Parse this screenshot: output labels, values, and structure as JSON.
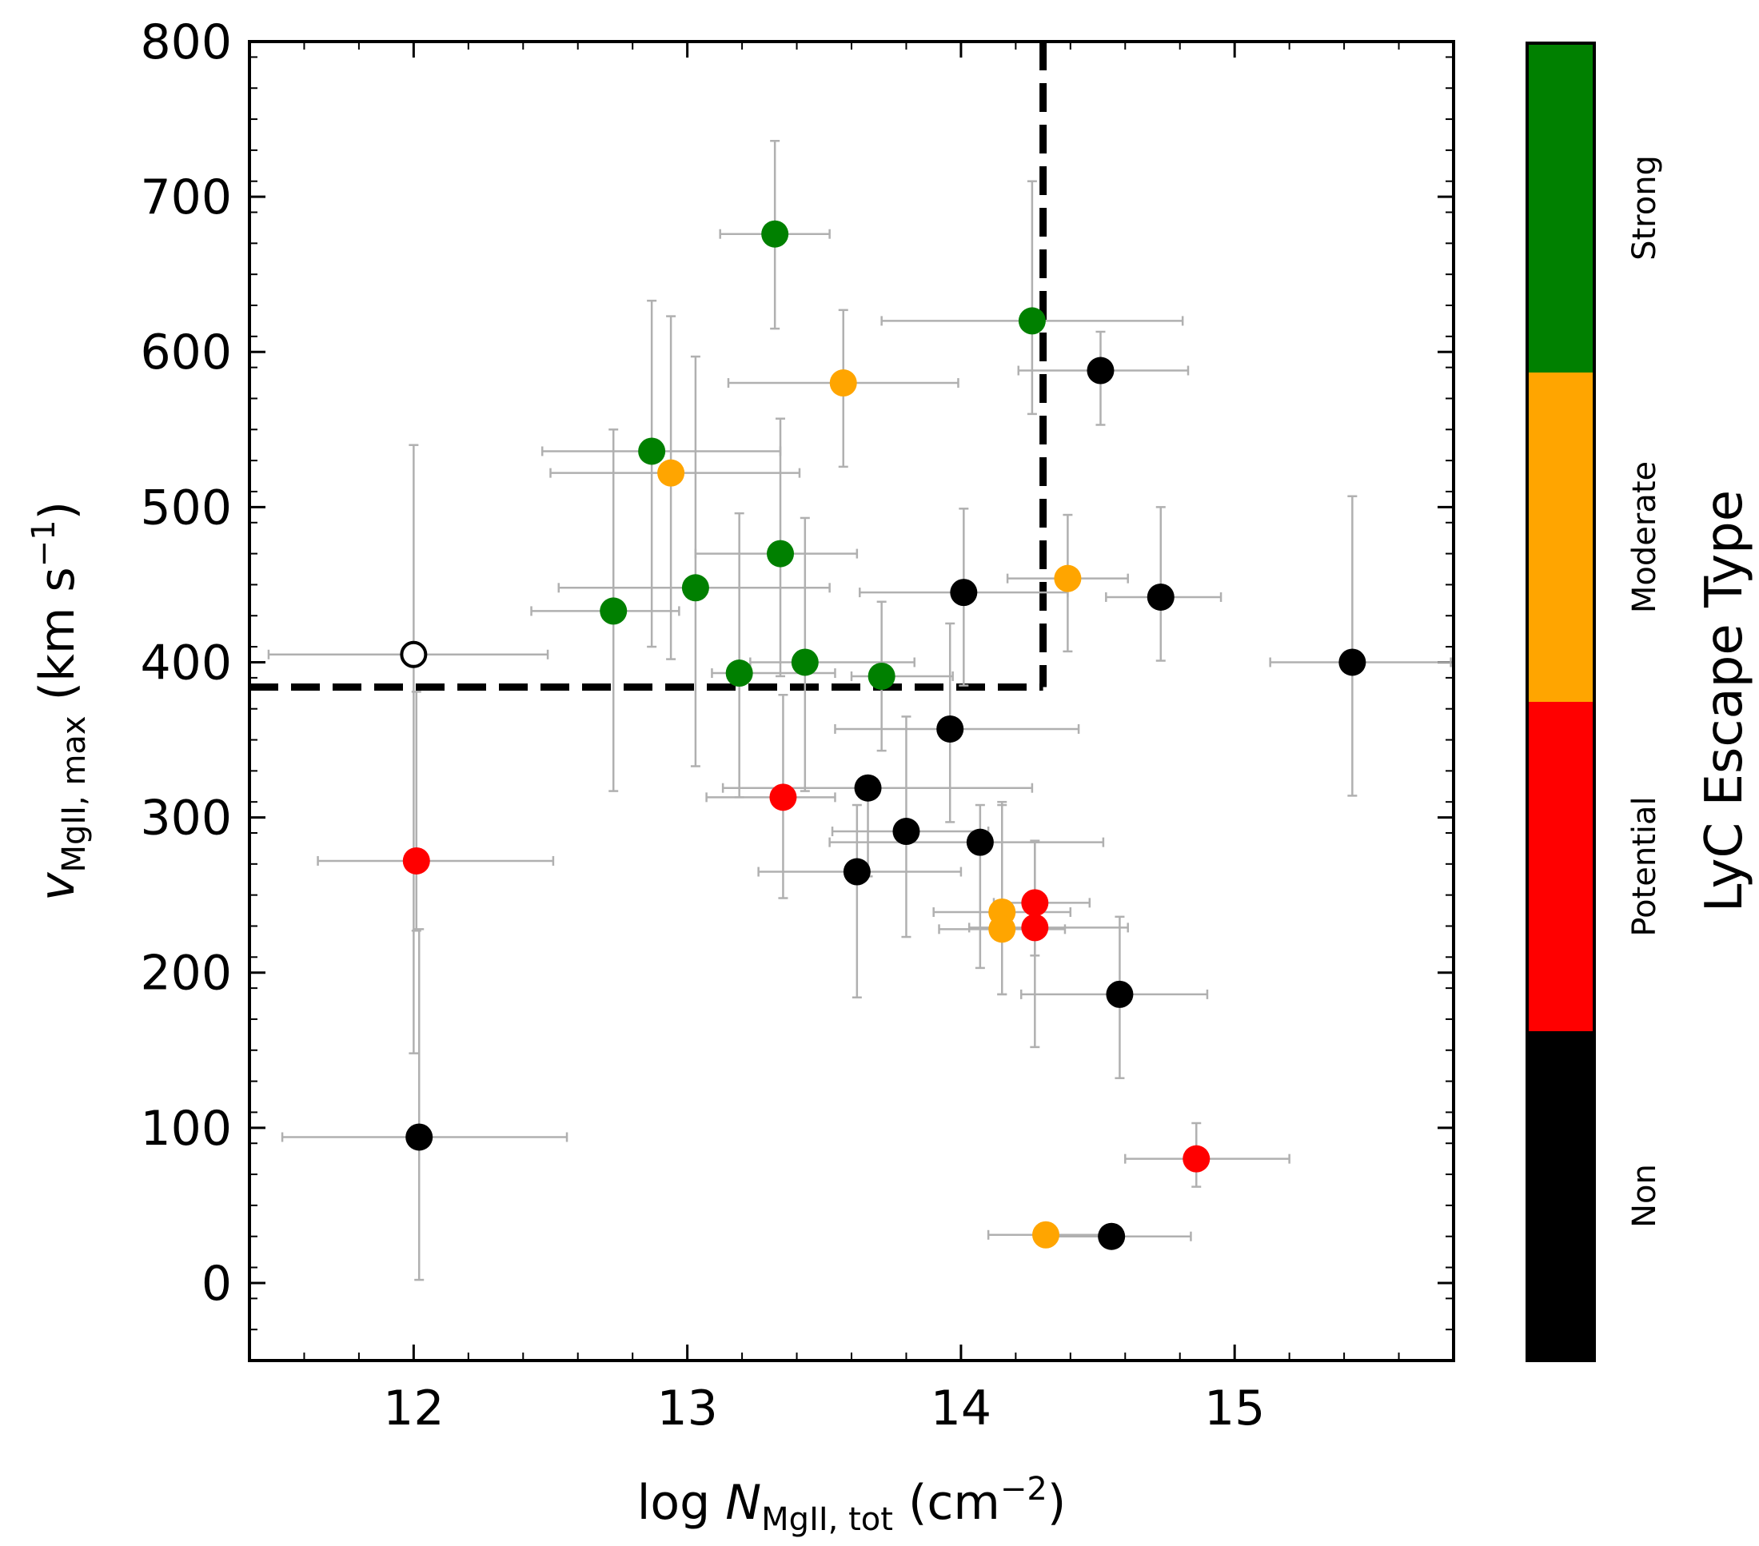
{
  "chart_data": {
    "type": "scatter",
    "xlabel": {
      "prefix": "log ",
      "var": "N",
      "sub": "MgII, tot",
      "unit_open": " (cm",
      "unit_exp": "−2",
      "unit_close": ")"
    },
    "ylabel": {
      "var": "v",
      "sub": "MgII, max",
      "unit_open": " (km s",
      "unit_exp": "−1",
      "unit_close": ")"
    },
    "xlim": [
      11.4,
      15.8
    ],
    "ylim": [
      -50,
      800
    ],
    "xticks": [
      {
        "value": 12,
        "label": "12"
      },
      {
        "value": 13,
        "label": "13"
      },
      {
        "value": 14,
        "label": "14"
      },
      {
        "value": 15,
        "label": "15"
      }
    ],
    "yticks": [
      {
        "value": 0,
        "label": "0"
      },
      {
        "value": 100,
        "label": "100"
      },
      {
        "value": 200,
        "label": "200"
      },
      {
        "value": 300,
        "label": "300"
      },
      {
        "value": 400,
        "label": "400"
      },
      {
        "value": 500,
        "label": "500"
      },
      {
        "value": 600,
        "label": "600"
      },
      {
        "value": 700,
        "label": "700"
      },
      {
        "value": 800,
        "label": "800"
      }
    ],
    "threshold_lines": {
      "vmax": 384,
      "logN": 14.3
    },
    "colorbar": {
      "title": "LyC Escape Type",
      "categories": [
        {
          "name": "Non",
          "label": "Non",
          "color": "#000000"
        },
        {
          "name": "Potential",
          "label": "Potential",
          "color": "#ff0000"
        },
        {
          "name": "Moderate",
          "label": "Moderate",
          "color": "#ffa500"
        },
        {
          "name": "Strong",
          "label": "Strong",
          "color": "#008000"
        }
      ]
    },
    "points": [
      {
        "x": 13.32,
        "y": 676,
        "xerr": [
          0.2,
          0.2
        ],
        "yerr": [
          61,
          60
        ],
        "cls": "Strong"
      },
      {
        "x": 14.26,
        "y": 620,
        "xerr": [
          0.55,
          0.55
        ],
        "yerr": [
          60,
          90
        ],
        "cls": "Strong"
      },
      {
        "x": 12.87,
        "y": 536,
        "xerr": [
          0.4,
          0.47
        ],
        "yerr": [
          126,
          97
        ],
        "cls": "Strong"
      },
      {
        "x": 13.34,
        "y": 470,
        "xerr": [
          0.31,
          0.28
        ],
        "yerr": [
          79,
          87
        ],
        "cls": "Strong"
      },
      {
        "x": 13.03,
        "y": 448,
        "xerr": [
          0.5,
          0.49
        ],
        "yerr": [
          115,
          149
        ],
        "cls": "Strong"
      },
      {
        "x": 12.73,
        "y": 433,
        "xerr": [
          0.3,
          0.24
        ],
        "yerr": [
          116,
          117
        ],
        "cls": "Strong"
      },
      {
        "x": 13.19,
        "y": 393,
        "xerr": [
          0.1,
          0.35
        ],
        "yerr": [
          80,
          103
        ],
        "cls": "Strong"
      },
      {
        "x": 13.43,
        "y": 400,
        "xerr": [
          0.2,
          0.4
        ],
        "yerr": [
          83,
          93
        ],
        "cls": "Strong"
      },
      {
        "x": 13.71,
        "y": 391,
        "xerr": [
          0.11,
          0.26
        ],
        "yerr": [
          48,
          48
        ],
        "cls": "Strong"
      },
      {
        "x": 13.57,
        "y": 580,
        "xerr": [
          0.42,
          0.42
        ],
        "yerr": [
          54,
          47
        ],
        "cls": "Moderate"
      },
      {
        "x": 12.94,
        "y": 522,
        "xerr": [
          0.44,
          0.47
        ],
        "yerr": [
          120,
          101
        ],
        "cls": "Moderate"
      },
      {
        "x": 14.39,
        "y": 454,
        "xerr": [
          0.22,
          0.22
        ],
        "yerr": [
          47,
          41
        ],
        "cls": "Moderate"
      },
      {
        "x": 14.15,
        "y": 239,
        "xerr": [
          0.25,
          0.25
        ],
        "yerr": [
          53,
          71
        ],
        "cls": "Moderate"
      },
      {
        "x": 14.15,
        "y": 228,
        "xerr": [
          0.23,
          0.23
        ],
        "yerr": [
          42,
          80
        ],
        "cls": "Moderate"
      },
      {
        "x": 14.31,
        "y": 31,
        "xerr": [
          0.21,
          0.21
        ],
        "yerr": [
          0,
          0
        ],
        "cls": "Moderate"
      },
      {
        "x": 12.01,
        "y": 272,
        "xerr": [
          0.36,
          0.5
        ],
        "yerr": [
          45,
          109
        ],
        "cls": "Potential"
      },
      {
        "x": 13.35,
        "y": 313,
        "xerr": [
          0.28,
          0.19
        ],
        "yerr": [
          65,
          66
        ],
        "cls": "Potential"
      },
      {
        "x": 14.27,
        "y": 245,
        "xerr": [
          0.15,
          0.2
        ],
        "yerr": [
          34,
          40
        ],
        "cls": "Potential"
      },
      {
        "x": 14.27,
        "y": 229,
        "xerr": [
          0.24,
          0.34
        ],
        "yerr": [
          77,
          55
        ],
        "cls": "Potential"
      },
      {
        "x": 14.86,
        "y": 80,
        "xerr": [
          0.26,
          0.34
        ],
        "yerr": [
          18,
          23
        ],
        "cls": "Potential"
      },
      {
        "x": 14.51,
        "y": 588,
        "xerr": [
          0.3,
          0.32
        ],
        "yerr": [
          35,
          25
        ],
        "cls": "Non"
      },
      {
        "x": 14.01,
        "y": 445,
        "xerr": [
          0.38,
          0.38
        ],
        "yerr": [
          60,
          54
        ],
        "cls": "Non"
      },
      {
        "x": 14.73,
        "y": 442,
        "xerr": [
          0.2,
          0.22
        ],
        "yerr": [
          41,
          58
        ],
        "cls": "Non"
      },
      {
        "x": 15.43,
        "y": 400,
        "xerr": [
          0.3,
          0.36
        ],
        "yerr": [
          86,
          107
        ],
        "cls": "Non"
      },
      {
        "x": 13.96,
        "y": 357,
        "xerr": [
          0.42,
          0.47
        ],
        "yerr": [
          60,
          68
        ],
        "cls": "Non"
      },
      {
        "x": 13.66,
        "y": 319,
        "xerr": [
          0.53,
          0.6
        ],
        "yerr": [
          57,
          0
        ],
        "cls": "Non"
      },
      {
        "x": 13.8,
        "y": 291,
        "xerr": [
          0.27,
          0.3
        ],
        "yerr": [
          68,
          74
        ],
        "cls": "Non"
      },
      {
        "x": 14.07,
        "y": 284,
        "xerr": [
          0.55,
          0.45
        ],
        "yerr": [
          81,
          24
        ],
        "cls": "Non"
      },
      {
        "x": 13.62,
        "y": 265,
        "xerr": [
          0.36,
          0.38
        ],
        "yerr": [
          81,
          43
        ],
        "cls": "Non"
      },
      {
        "x": 14.58,
        "y": 186,
        "xerr": [
          0.36,
          0.32
        ],
        "yerr": [
          54,
          50
        ],
        "cls": "Non"
      },
      {
        "x": 12.02,
        "y": 94,
        "xerr": [
          0.5,
          0.54
        ],
        "yerr": [
          92,
          134
        ],
        "cls": "Non"
      },
      {
        "x": 14.55,
        "y": 30,
        "xerr": [
          0.28,
          0.29
        ],
        "yerr": [
          0,
          0
        ],
        "cls": "Non"
      },
      {
        "x": 12.0,
        "y": 405,
        "xerr": [
          0.53,
          0.49
        ],
        "yerr": [
          257,
          135
        ],
        "cls": "Unclassified"
      }
    ]
  }
}
